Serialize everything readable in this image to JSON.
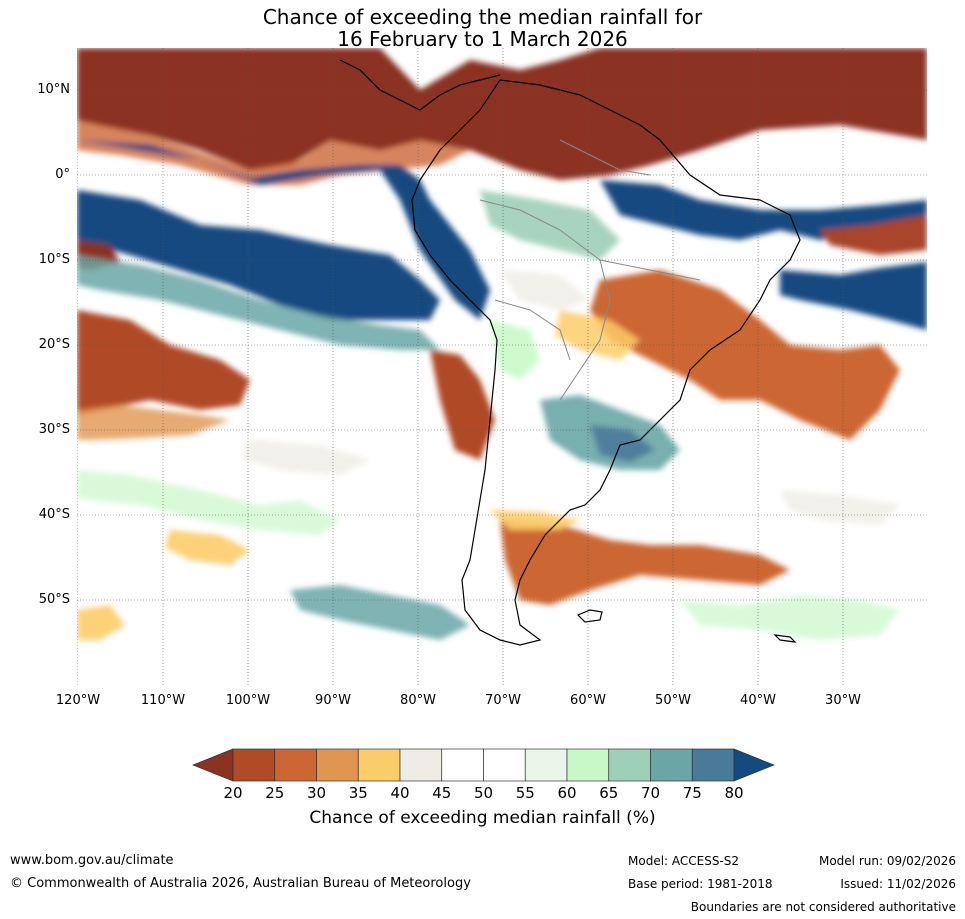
{
  "title_line1": "Chance of exceeding the median rainfall for",
  "title_line2": "16 February to 1 March 2026",
  "lat_labels": [
    "10°N",
    "0°",
    "10°S",
    "20°S",
    "30°S",
    "40°S",
    "50°S"
  ],
  "lon_labels": [
    "120°W",
    "110°W",
    "100°W",
    "90°W",
    "80°W",
    "70°W",
    "60°W",
    "50°W",
    "40°W",
    "30°W"
  ],
  "colorbar": {
    "ticks": [
      "20",
      "25",
      "30",
      "35",
      "40",
      "45",
      "50",
      "55",
      "60",
      "65",
      "70",
      "75",
      "80"
    ],
    "colors": [
      "#8b3320",
      "#b04a27",
      "#cc6633",
      "#e09550",
      "#fdcc6a",
      "#efece6",
      "#ffffff",
      "#ffffff",
      "#e8f5e8",
      "#c8f8c8",
      "#9ecfb8",
      "#6aa6a6",
      "#4a7a9a",
      "#134a80"
    ],
    "title": "Chance of exceeding median rainfall (%)"
  },
  "footer": {
    "website": "www.bom.gov.au/climate",
    "copyright": "© Commonwealth of Australia 2026, Australian Bureau of Meteorology",
    "model": "Model: ACCESS-S2",
    "base_period": "Base period: 1981-2018",
    "model_run": "Model run: 09/02/2026",
    "issued": "Issued: 11/02/2026",
    "disclaimer": "Boundaries are not considered authoritative"
  }
}
